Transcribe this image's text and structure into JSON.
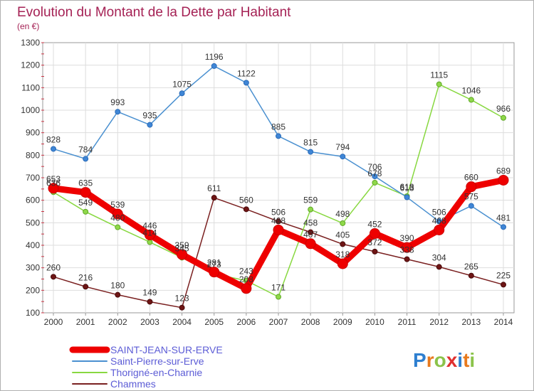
{
  "chart_data": {
    "type": "line",
    "title": "Evolution du Montant de la Dette par Habitant",
    "subtitle": "(en €)",
    "xlabel": "",
    "ylabel": "",
    "categories": [
      "2000",
      "2001",
      "2002",
      "2003",
      "2004",
      "2005",
      "2006",
      "2007",
      "2008",
      "2009",
      "2010",
      "2011",
      "2012",
      "2013",
      "2014"
    ],
    "ylim": [
      100,
      1300
    ],
    "yticks": [
      100,
      200,
      300,
      400,
      500,
      600,
      700,
      800,
      900,
      1000,
      1100,
      1200,
      1300
    ],
    "grid": true,
    "legend_position": "bottom-left",
    "series": [
      {
        "name": "SAINT-JEAN-SUR-ERVE",
        "color": "#ee0000",
        "values": [
          653,
          635,
          539,
          446,
          359,
          281,
          208,
          468,
          407,
          318,
          452,
          390,
          468,
          660,
          689
        ],
        "labels": [
          "653",
          "635",
          "539",
          "446",
          "359",
          "281",
          "208",
          "468",
          "407",
          "318",
          "452",
          "390",
          "468",
          "660",
          "689"
        ]
      },
      {
        "name": "Saint-Pierre-sur-Erve",
        "color": "#4a90d0",
        "values": [
          828,
          784,
          993,
          935,
          1075,
          1196,
          1122,
          885,
          815,
          794,
          706,
          613,
          506,
          575,
          481
        ],
        "labels": [
          "828",
          "784",
          "993",
          "935",
          "1075",
          "1196",
          "1122",
          "885",
          "815",
          "794",
          "706",
          "613",
          "506",
          "575",
          "481"
        ]
      },
      {
        "name": "Thorigné-en-Charnie",
        "color": "#88d840",
        "values": [
          636,
          549,
          480,
          414,
          345,
          273,
          243,
          171,
          559,
          498,
          678,
          618,
          1115,
          1046,
          966
        ],
        "labels": [
          "636",
          "549",
          "480",
          "414",
          "345",
          "273",
          "243",
          "171",
          "559",
          "498",
          "678",
          "618",
          "1115",
          "1046",
          "966"
        ]
      },
      {
        "name": "Chammes",
        "color": "#7a2020",
        "values": [
          260,
          216,
          180,
          149,
          123,
          611,
          560,
          506,
          458,
          405,
          372,
          338,
          304,
          265,
          225
        ],
        "labels": [
          "260",
          "216",
          "180",
          "149",
          "123",
          "611",
          "560",
          "506",
          "458",
          "405",
          "372",
          "338",
          "304",
          "265",
          "225"
        ]
      }
    ]
  },
  "logo": {
    "text": "Proxiti",
    "letters": [
      "P",
      "r",
      "o",
      "x",
      "i",
      "t",
      "i"
    ],
    "colors": [
      "#2e7fd0",
      "#e87a1e",
      "#8bc34a",
      "#e03030",
      "#2e7fd0",
      "#e87a1e",
      "#8bc34a"
    ]
  }
}
